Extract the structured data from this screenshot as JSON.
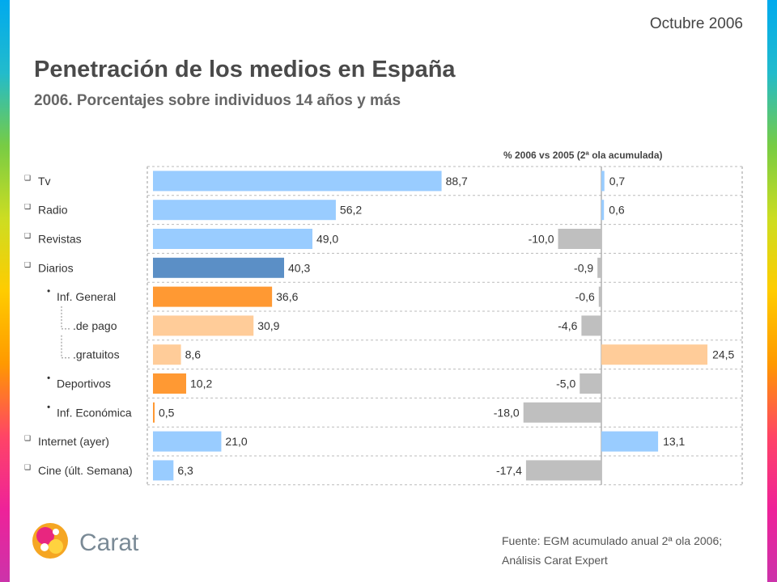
{
  "header": {
    "date": "Octubre 2006",
    "title": "Penetración de los medios en España",
    "subtitle": "2006. Porcentajes sobre individuos 14 años y más"
  },
  "chart_data": {
    "type": "bar",
    "orientation": "horizontal",
    "secondary_header": "% 2006 vs 2005 (2ª ola acumulada)",
    "categories": [
      {
        "label": "Tv",
        "marker": "❑",
        "level": 0
      },
      {
        "label": "Radio",
        "marker": "❑",
        "level": 0
      },
      {
        "label": "Revistas",
        "marker": "❑",
        "level": 0
      },
      {
        "label": "Diarios",
        "marker": "❑",
        "level": 0
      },
      {
        "label": "Inf. General",
        "marker": "•",
        "level": 1
      },
      {
        "label": ".de pago",
        "marker": "",
        "level": 2
      },
      {
        "label": ".gratuitos",
        "marker": "",
        "level": 2
      },
      {
        "label": "Deportivos",
        "marker": "•",
        "level": 1
      },
      {
        "label": "Inf. Económica",
        "marker": "•",
        "level": 1
      },
      {
        "label": "Internet (ayer)",
        "marker": "❑",
        "level": 0
      },
      {
        "label": "Cine (últ. Semana)",
        "marker": "❑",
        "level": 0
      }
    ],
    "series": [
      {
        "values": [
          88.7,
          56.2,
          49.0,
          40.3,
          36.6,
          30.9,
          8.6,
          10.2,
          0.5,
          21.0,
          6.3
        ],
        "labels": [
          "88,7",
          "56,2",
          "49,0",
          "40,3",
          "36,6",
          "30,9",
          "8,6",
          "10,2",
          "0,5",
          "21,0",
          "6,3"
        ],
        "colors": [
          "#99ccff",
          "#99ccff",
          "#99ccff",
          "#5b8fc6",
          "#ff9933",
          "#ffcc99",
          "#ffcc99",
          "#ff9933",
          "#ff9933",
          "#99ccff",
          "#99ccff"
        ]
      },
      {
        "values": [
          0.7,
          0.6,
          -10.0,
          -0.9,
          -0.6,
          -4.6,
          24.5,
          -5.0,
          -18.0,
          13.1,
          -17.4
        ],
        "labels": [
          "0,7",
          "0,6",
          "-10,0",
          "-0,9",
          "-0,6",
          "-4,6",
          "24,5",
          "-5,0",
          "-18,0",
          "13,1",
          "-17,4"
        ],
        "positive_colors": [
          "#99ccff",
          "#99ccff",
          "#99ccff",
          "#99ccff",
          "#99ccff",
          "#99ccff",
          "#ffcc99",
          "#99ccff",
          "#99ccff",
          "#99ccff",
          "#99ccff"
        ],
        "negative_color": "#bfbfbf"
      }
    ],
    "xlim_penetration": [
      0,
      100
    ],
    "xlim_change": [
      -25,
      25
    ],
    "grid": "dashed-horizontal",
    "stripe_colors": [
      "#00aaee",
      "#22bbcc",
      "#77cc44",
      "#ccdd22",
      "#ffcc00",
      "#ff9900",
      "#ff4466",
      "#ee2299",
      "#cc33aa"
    ]
  },
  "footer": {
    "source_line1": "Fuente: EGM acumulado anual 2ª ola 2006;",
    "source_line2": "Análisis Carat Expert",
    "logo_text": "Carat"
  }
}
